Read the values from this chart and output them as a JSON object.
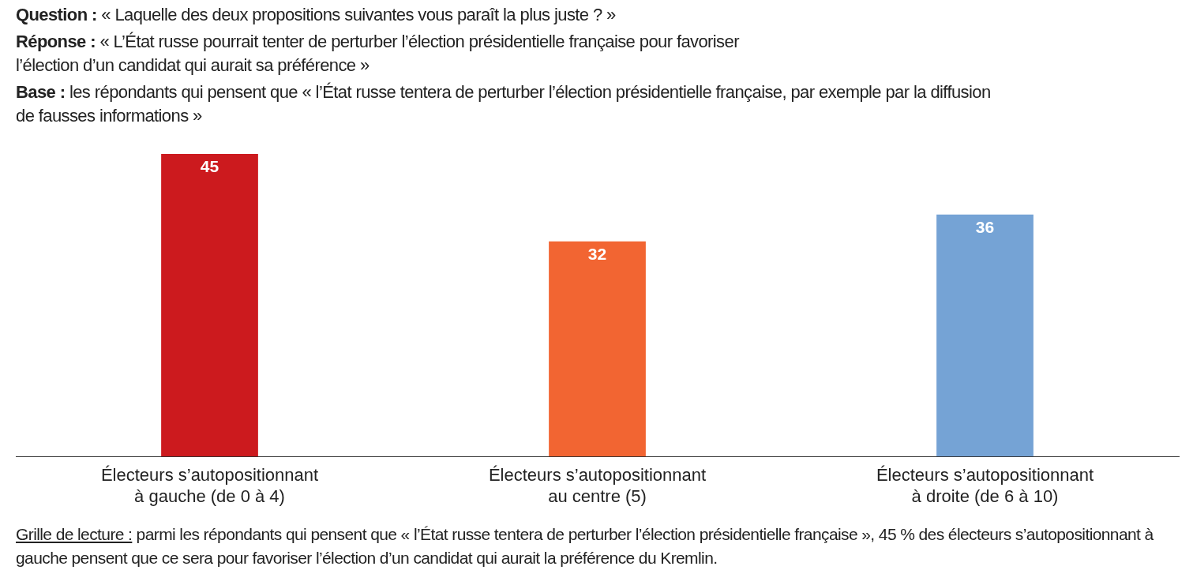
{
  "chart_data": {
    "type": "bar",
    "title": "Question : « Laquelle des deux propositions suivantes vous paraît la plus juste ? »",
    "subtitle": "Réponse : « L’État russe pourrait tenter de perturber l’élection présidentielle française pour favoriser l’élection d’un candidat qui aurait sa préférence »",
    "annotations": [
      "Base : les répondants qui pensent que « l’État russe tentera de perturber l’élection présidentielle française, par exemple par la diffusion de fausses informations »",
      "Grille de lecture : parmi les répondants qui pensent que « l’État russe tentera de perturber l’élection présidentielle française », 45 % des électeurs s’autopositionnant à gauche pensent que ce sera pour favoriser l’élection d’un candidat qui aurait la préférence du Kremlin."
    ],
    "categories": [
      "Électeurs s’autopositionnant à gauche (de 0 à 4)",
      "Électeurs s’autopositionnant au centre (5)",
      "Électeurs s’autopositionnant à droite (de 6 à 10)"
    ],
    "values": [
      45,
      32,
      36
    ],
    "colors": [
      "#cc1a1e",
      "#f26532",
      "#75a3d5"
    ],
    "data_labels": true,
    "grid": false,
    "legend": false
  }
}
